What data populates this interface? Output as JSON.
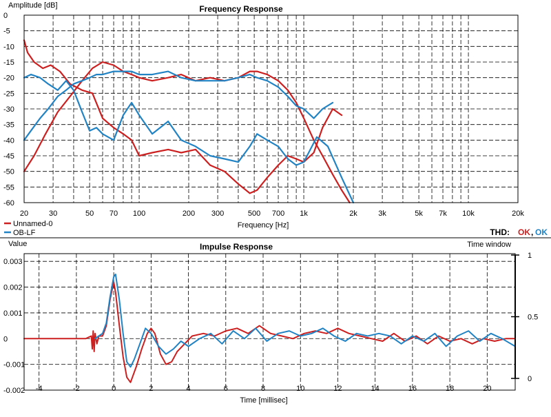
{
  "colors": {
    "red": "#cc1f1f",
    "blue": "#2183c4",
    "background": "#ffffff"
  },
  "thd": {
    "label": "THD:",
    "ok_red": "OK",
    "separator": ",",
    "ok_blue": "OK"
  },
  "legend": {
    "series_red": "Unnamed-0",
    "series_blue": "OB-LF"
  },
  "chart_data": [
    {
      "type": "line",
      "title": "Frequency Response",
      "ylabel": "Amplitude [dB]",
      "xlabel": "Frequency [Hz]",
      "xscale": "log",
      "xlim": [
        20,
        20000
      ],
      "ylim": [
        -60,
        0
      ],
      "yticks": [
        0,
        -5,
        -10,
        -15,
        -20,
        -25,
        -30,
        -35,
        -40,
        -45,
        -50,
        -55,
        -60
      ],
      "xtick_labels": [
        {
          "x": 20,
          "label": "20"
        },
        {
          "x": 30,
          "label": "30"
        },
        {
          "x": 50,
          "label": "50"
        },
        {
          "x": 70,
          "label": "70"
        },
        {
          "x": 100,
          "label": "100"
        },
        {
          "x": 200,
          "label": "200"
        },
        {
          "x": 300,
          "label": "300"
        },
        {
          "x": 500,
          "label": "500"
        },
        {
          "x": 700,
          "label": "700"
        },
        {
          "x": 1000,
          "label": "1k"
        },
        {
          "x": 2000,
          "label": "2k"
        },
        {
          "x": 3000,
          "label": "3k"
        },
        {
          "x": 5000,
          "label": "5k"
        },
        {
          "x": 7000,
          "label": "7k"
        },
        {
          "x": 10000,
          "label": "10k"
        },
        {
          "x": 20000,
          "label": "20k"
        }
      ],
      "grid": true,
      "legend_position": "bottom-left",
      "series": [
        {
          "name": "Unnamed-0",
          "color": "#cc1f1f",
          "x": [
            20,
            21,
            23,
            26,
            29,
            33,
            38,
            45,
            52,
            60,
            70,
            80,
            90,
            100,
            120,
            150,
            180,
            220,
            270,
            330,
            400,
            470,
            520,
            600,
            700,
            800,
            900,
            1000,
            1150,
            1300,
            1500,
            1700
          ],
          "y": [
            -8,
            -12,
            -15,
            -17,
            -16,
            -18,
            -22,
            -24,
            -25,
            -33,
            -36,
            -38,
            -40,
            -45,
            -44,
            -43,
            -44,
            -43,
            -48,
            -50,
            -54,
            -57,
            -56,
            -52,
            -48,
            -45,
            -46,
            -47,
            -44,
            -36,
            -30,
            -32
          ]
        },
        {
          "name": "Unnamed-0",
          "color": "#cc1f1f",
          "x": [
            20,
            23,
            27,
            32,
            38,
            45,
            52,
            60,
            70,
            80,
            90,
            100,
            120,
            150,
            180,
            220,
            270,
            330,
            400,
            470,
            520,
            600,
            700,
            800,
            900,
            1000,
            1150,
            1300,
            1500,
            1700,
            1900
          ],
          "y": [
            -50,
            -45,
            -38,
            -31,
            -26,
            -21,
            -17,
            -15,
            -16,
            -18,
            -19,
            -20,
            -21,
            -20,
            -19,
            -21,
            -20,
            -21,
            -20,
            -18,
            -18,
            -19,
            -21,
            -24,
            -28,
            -33,
            -40,
            -45,
            -51,
            -56,
            -60
          ]
        },
        {
          "name": "OB-LF",
          "color": "#2183c4",
          "x": [
            20,
            22,
            25,
            28,
            32,
            36,
            40,
            45,
            50,
            55,
            60,
            70,
            80,
            90,
            100,
            120,
            150,
            180,
            220,
            270,
            330,
            400,
            470,
            520,
            600,
            700,
            800,
            900,
            1000,
            1150,
            1300,
            1500
          ],
          "y": [
            -40,
            -37,
            -33,
            -30,
            -26,
            -24,
            -22,
            -21,
            -20,
            -19,
            -19,
            -18,
            -18,
            -18,
            -19,
            -19,
            -18,
            -20,
            -21,
            -21,
            -21,
            -20,
            -19,
            -20,
            -21,
            -23,
            -26,
            -29,
            -30,
            -33,
            -30,
            -28
          ]
        },
        {
          "name": "OB-LF",
          "color": "#2183c4",
          "x": [
            20,
            22,
            25,
            28,
            32,
            36,
            40,
            45,
            50,
            55,
            60,
            70,
            80,
            90,
            100,
            120,
            150,
            180,
            220,
            270,
            330,
            400,
            470,
            520,
            600,
            700,
            800,
            900,
            1000,
            1200,
            1400,
            1700,
            2000
          ],
          "y": [
            -20,
            -19,
            -20,
            -22,
            -24,
            -21,
            -24,
            -31,
            -37,
            -36,
            -38,
            -40,
            -32,
            -28,
            -32,
            -38,
            -34,
            -40,
            -42,
            -45,
            -46,
            -47,
            -42,
            -38,
            -40,
            -42,
            -46,
            -48,
            -47,
            -39,
            -42,
            -52,
            -60
          ]
        }
      ]
    },
    {
      "type": "line",
      "title": "Impulse Response",
      "ylabel": "Value",
      "xlabel": "Time [millisec]",
      "y2label": "Time window",
      "xlim": [
        -4.8,
        21.5
      ],
      "ylim": [
        -0.002,
        0.0033
      ],
      "y2lim": [
        0,
        1
      ],
      "yticks": [
        "0.003",
        "0.002",
        "0.001",
        "0",
        "-0.001",
        "-0.002"
      ],
      "y2ticks": [
        "1",
        "0.5",
        "0"
      ],
      "xticks": [
        -4,
        -2,
        0,
        2,
        4,
        6,
        8,
        10,
        12,
        14,
        16,
        18,
        20
      ],
      "grid": true,
      "series": [
        {
          "name": "Unnamed-0",
          "color": "#cc1f1f",
          "x": [
            -4.8,
            -1.5,
            -1.2,
            -1.15,
            -1.1,
            -1.05,
            -1.0,
            -0.9,
            -0.8,
            -0.6,
            -0.4,
            -0.2,
            0.0,
            0.1,
            0.3,
            0.5,
            0.7,
            0.9,
            1.2,
            1.5,
            1.8,
            2.0,
            2.2,
            2.5,
            2.8,
            3.1,
            3.4,
            3.8,
            4.2,
            4.8,
            5.4,
            6.0,
            6.6,
            7.2,
            7.8,
            8.4,
            9.0,
            9.6,
            10.2,
            10.8,
            11.4,
            12.0,
            12.6,
            13.2,
            13.8,
            14.4,
            15.0,
            15.6,
            16.2,
            16.8,
            17.4,
            18.0,
            18.6,
            19.2,
            19.8,
            20.4,
            21.0,
            21.5
          ],
          "y": [
            0,
            0,
            0.0001,
            -0.0004,
            0.0003,
            -0.0005,
            0.0002,
            -0.0002,
            0.0001,
            0.0001,
            0.0005,
            0.0015,
            0.0022,
            0.0018,
            0.0005,
            -0.0007,
            -0.0015,
            -0.0017,
            -0.0011,
            -0.0004,
            0.0002,
            0.0004,
            0.0002,
            -0.0006,
            -0.001,
            -0.0009,
            -0.0005,
            -0.0002,
            0.0001,
            0.0002,
            0.0001,
            0.0003,
            0.0004,
            0.0002,
            0.0005,
            0.0002,
            0.0001,
            0.0,
            0.0002,
            0.0003,
            0.0002,
            0.0004,
            0.0002,
            0.0001,
            0.0,
            -0.0001,
            0.0002,
            -0.0001,
            0.0001,
            -0.0002,
            0.0001,
            -0.0001,
            0.0,
            -0.0002,
            0.0,
            -0.0001,
            0.0,
            0.0
          ]
        },
        {
          "name": "OB-LF",
          "color": "#2183c4",
          "x": [
            -1.0,
            -0.8,
            -0.6,
            -0.4,
            -0.2,
            0.0,
            0.1,
            0.3,
            0.5,
            0.7,
            0.9,
            1.1,
            1.4,
            1.7,
            2.0,
            2.4,
            2.8,
            3.2,
            3.6,
            4.0,
            4.6,
            5.2,
            5.8,
            6.4,
            7.0,
            7.6,
            8.2,
            8.8,
            9.4,
            10.0,
            10.6,
            11.2,
            11.8,
            12.4,
            13.0,
            13.6,
            14.2,
            14.8,
            15.4,
            16.0,
            16.6,
            17.2,
            17.8,
            18.4,
            19.0,
            19.6,
            20.2,
            20.8,
            21.5
          ],
          "y": [
            0.0,
            0.0001,
            0.0002,
            0.0006,
            0.0016,
            0.0024,
            0.0025,
            0.0015,
            0.0002,
            -0.0009,
            -0.0011,
            -0.0008,
            -0.0002,
            0.0004,
            0.0002,
            -0.0003,
            -0.0006,
            -0.0004,
            -0.0001,
            -0.0003,
            0.0,
            0.0002,
            -0.0002,
            0.0003,
            0.0,
            0.0004,
            -0.0001,
            0.0002,
            0.0003,
            0.0001,
            0.0002,
            0.0004,
            0.0001,
            -0.0001,
            0.0002,
            0.0001,
            0.0002,
            0.0001,
            -0.0002,
            0.0001,
            -0.0001,
            0.0002,
            -0.0003,
            0.0001,
            0.0003,
            -0.0001,
            0.0002,
            0.0,
            -0.0003
          ]
        }
      ]
    }
  ]
}
